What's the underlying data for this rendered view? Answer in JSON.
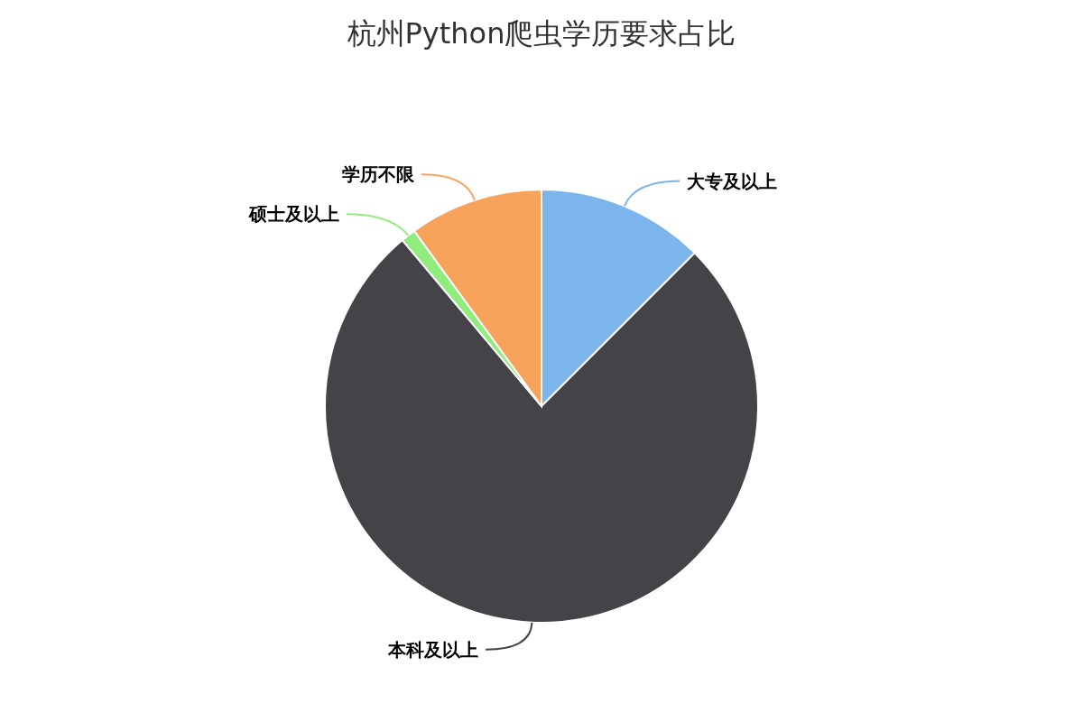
{
  "chart_data": {
    "type": "pie",
    "title": "杭州Python爬虫学历要求占比",
    "categories": [
      "大专及以上",
      "本科及以上",
      "硕士及以上",
      "学历不限"
    ],
    "values": [
      12.5,
      76.4,
      1.1,
      10
    ],
    "colors": [
      "#7cb5ec",
      "#434348",
      "#90ed7d",
      "#f7a35c"
    ]
  }
}
